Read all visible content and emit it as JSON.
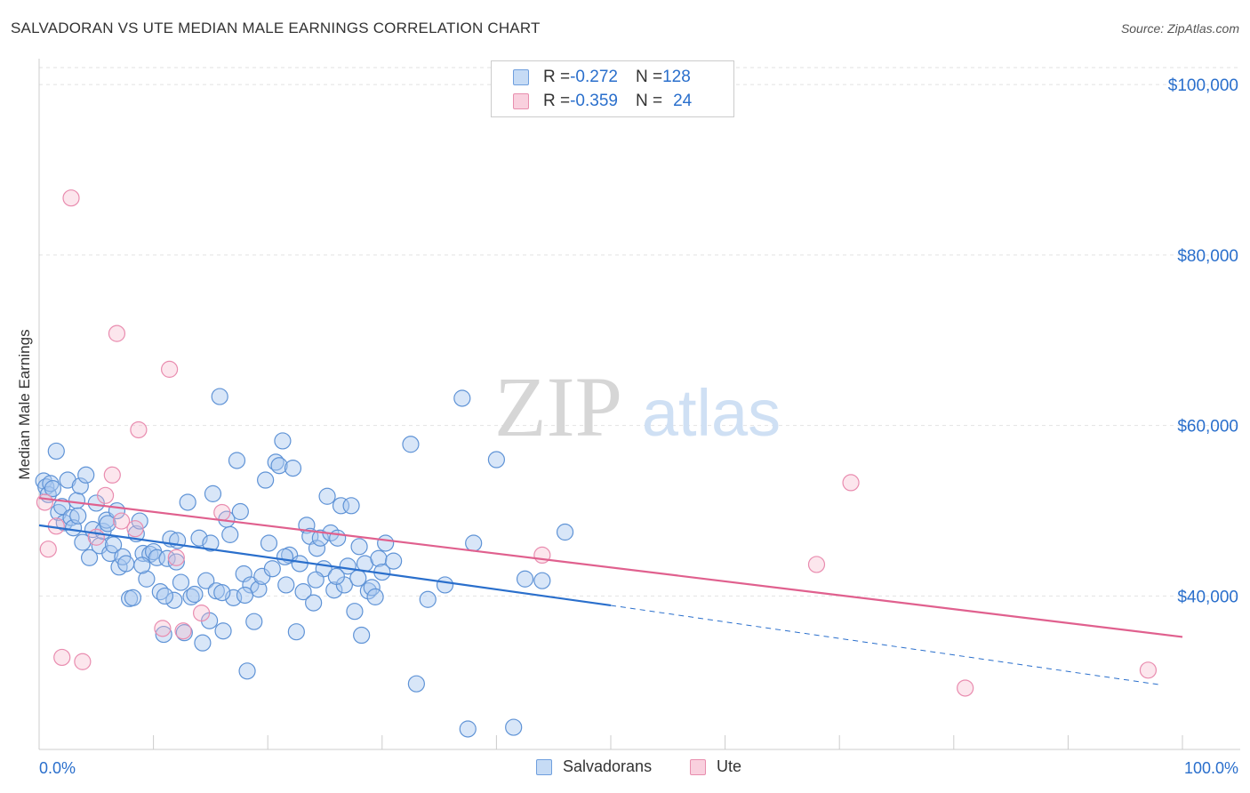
{
  "title": "SALVADORAN VS UTE MEDIAN MALE EARNINGS CORRELATION CHART",
  "source": "Source: ZipAtlas.com",
  "watermark": {
    "zip": "ZIP",
    "atlas": "atlas"
  },
  "colors": {
    "blue": "#2a6fcc",
    "blue_fill": "#a9c8f0",
    "pink": "#e0608e",
    "pink_fill": "#f5b8cc",
    "grid": "#dddddd",
    "axis_label": "#2a6fcc"
  },
  "legend_top": {
    "rows": [
      {
        "r_label": "R = ",
        "r_value": "-0.272",
        "n_label": "N = ",
        "n_value": "128"
      },
      {
        "r_label": "R = ",
        "r_value": "-0.359",
        "n_label": "N = ",
        "n_value": "24"
      }
    ]
  },
  "legend_bottom": [
    "Salvadorans",
    "Ute"
  ],
  "chart_data": {
    "type": "scatter",
    "xlabel": "",
    "ylabel": "Median Male Earnings",
    "xlim": [
      0,
      100
    ],
    "ylim": [
      22000,
      102000
    ],
    "x_tick_labels": [
      "0.0%",
      "100.0%"
    ],
    "y_ticks": [
      {
        "value": 40000,
        "label": "$40,000"
      },
      {
        "value": 60000,
        "label": "$60,000"
      },
      {
        "value": 80000,
        "label": "$80,000"
      },
      {
        "value": 100000,
        "label": "$100,000"
      }
    ],
    "grid": true,
    "series": [
      {
        "name": "Salvadorans",
        "color": "#2a6fcc",
        "trend": {
          "x0": 0,
          "y0": 48300,
          "x1": 50,
          "y1": 38900,
          "dash_to_x": 98,
          "dash_to_y": 29600
        },
        "points": [
          [
            0.4,
            53.5
          ],
          [
            0.6,
            52.8
          ],
          [
            0.8,
            51.9
          ],
          [
            1.0,
            53.2
          ],
          [
            1.2,
            52.6
          ],
          [
            1.5,
            57.0
          ],
          [
            1.7,
            49.8
          ],
          [
            2.0,
            50.5
          ],
          [
            2.2,
            48.6
          ],
          [
            2.5,
            53.6
          ],
          [
            2.8,
            49.2
          ],
          [
            3.0,
            48.0
          ],
          [
            3.3,
            51.2
          ],
          [
            3.6,
            52.9
          ],
          [
            3.8,
            46.3
          ],
          [
            4.1,
            54.2
          ],
          [
            4.4,
            44.5
          ],
          [
            4.7,
            47.8
          ],
          [
            5.0,
            50.9
          ],
          [
            5.3,
            45.9
          ],
          [
            5.6,
            47.6
          ],
          [
            5.9,
            48.9
          ],
          [
            6.2,
            45.0
          ],
          [
            6.5,
            46.0
          ],
          [
            6.8,
            50.0
          ],
          [
            7.0,
            43.4
          ],
          [
            7.3,
            44.6
          ],
          [
            7.6,
            43.8
          ],
          [
            7.9,
            39.7
          ],
          [
            8.2,
            39.8
          ],
          [
            8.5,
            47.3
          ],
          [
            8.8,
            48.8
          ],
          [
            9.1,
            45.0
          ],
          [
            9.4,
            42.0
          ],
          [
            9.7,
            44.9
          ],
          [
            10.0,
            45.2
          ],
          [
            10.3,
            44.5
          ],
          [
            10.6,
            40.5
          ],
          [
            10.9,
            35.5
          ],
          [
            11.2,
            44.4
          ],
          [
            11.5,
            46.7
          ],
          [
            11.8,
            39.5
          ],
          [
            12.1,
            46.5
          ],
          [
            12.4,
            41.6
          ],
          [
            12.7,
            35.7
          ],
          [
            13.0,
            51.0
          ],
          [
            13.3,
            39.9
          ],
          [
            13.6,
            40.2
          ],
          [
            14.0,
            46.8
          ],
          [
            14.3,
            34.5
          ],
          [
            14.6,
            41.8
          ],
          [
            14.9,
            37.1
          ],
          [
            15.2,
            52.0
          ],
          [
            15.5,
            40.6
          ],
          [
            15.8,
            63.4
          ],
          [
            16.1,
            35.9
          ],
          [
            16.4,
            49.0
          ],
          [
            16.7,
            47.2
          ],
          [
            17.0,
            39.8
          ],
          [
            17.3,
            55.9
          ],
          [
            17.6,
            49.9
          ],
          [
            17.9,
            42.6
          ],
          [
            18.2,
            31.2
          ],
          [
            18.5,
            41.3
          ],
          [
            18.8,
            37.0
          ],
          [
            19.2,
            40.8
          ],
          [
            19.5,
            42.3
          ],
          [
            19.8,
            53.6
          ],
          [
            20.1,
            46.2
          ],
          [
            20.4,
            43.2
          ],
          [
            20.7,
            55.7
          ],
          [
            21.0,
            55.3
          ],
          [
            21.3,
            58.2
          ],
          [
            21.6,
            41.3
          ],
          [
            21.9,
            44.8
          ],
          [
            22.2,
            55.0
          ],
          [
            22.5,
            35.8
          ],
          [
            22.8,
            43.8
          ],
          [
            23.1,
            40.5
          ],
          [
            23.4,
            48.3
          ],
          [
            23.7,
            47.0
          ],
          [
            24.0,
            39.2
          ],
          [
            24.3,
            45.6
          ],
          [
            24.6,
            46.8
          ],
          [
            24.9,
            43.2
          ],
          [
            25.2,
            51.7
          ],
          [
            25.5,
            47.4
          ],
          [
            25.8,
            40.7
          ],
          [
            26.1,
            46.8
          ],
          [
            26.4,
            50.6
          ],
          [
            26.7,
            41.3
          ],
          [
            27.0,
            43.5
          ],
          [
            27.3,
            50.6
          ],
          [
            27.6,
            38.2
          ],
          [
            27.9,
            42.1
          ],
          [
            28.2,
            35.4
          ],
          [
            28.5,
            43.8
          ],
          [
            28.8,
            40.6
          ],
          [
            29.1,
            41.0
          ],
          [
            29.4,
            39.9
          ],
          [
            29.7,
            44.4
          ],
          [
            30.0,
            42.8
          ],
          [
            30.3,
            46.2
          ],
          [
            31.0,
            44.1
          ],
          [
            32.5,
            57.8
          ],
          [
            33.0,
            29.7
          ],
          [
            34.0,
            39.6
          ],
          [
            35.5,
            41.3
          ],
          [
            37.0,
            63.2
          ],
          [
            37.5,
            24.4
          ],
          [
            38.0,
            46.2
          ],
          [
            40.0,
            56.0
          ],
          [
            41.5,
            24.6
          ],
          [
            42.5,
            42.0
          ],
          [
            44.0,
            41.8
          ],
          [
            46.0,
            47.5
          ],
          [
            3.4,
            49.4
          ],
          [
            6.0,
            48.5
          ],
          [
            9.0,
            43.6
          ],
          [
            12.0,
            44.0
          ],
          [
            15.0,
            46.2
          ],
          [
            18.0,
            40.1
          ],
          [
            21.5,
            44.6
          ],
          [
            24.2,
            41.9
          ],
          [
            26.0,
            42.3
          ],
          [
            28.0,
            45.8
          ],
          [
            16.0,
            40.4
          ],
          [
            11.0,
            40.0
          ]
        ]
      },
      {
        "name": "Ute",
        "color": "#e0608e",
        "trend": {
          "x0": 0,
          "y0": 51500,
          "x1": 100,
          "y1": 35200
        },
        "points": [
          [
            0.5,
            51.0
          ],
          [
            0.8,
            45.5
          ],
          [
            1.5,
            48.2
          ],
          [
            2.0,
            32.8
          ],
          [
            2.8,
            86.7
          ],
          [
            3.8,
            32.3
          ],
          [
            5.0,
            46.9
          ],
          [
            5.8,
            51.8
          ],
          [
            6.4,
            54.2
          ],
          [
            6.8,
            70.8
          ],
          [
            7.2,
            48.8
          ],
          [
            8.4,
            47.9
          ],
          [
            8.7,
            59.5
          ],
          [
            10.8,
            36.2
          ],
          [
            11.4,
            66.6
          ],
          [
            12.0,
            44.5
          ],
          [
            12.6,
            35.9
          ],
          [
            14.2,
            38.0
          ],
          [
            16.0,
            49.8
          ],
          [
            44.0,
            44.8
          ],
          [
            68.0,
            43.7
          ],
          [
            71.0,
            53.3
          ],
          [
            81.0,
            29.2
          ],
          [
            97.0,
            31.3
          ]
        ]
      }
    ]
  }
}
